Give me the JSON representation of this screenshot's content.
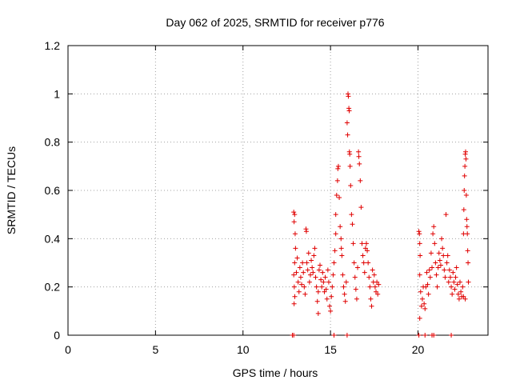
{
  "chart_data": {
    "type": "scatter",
    "title": "Day 062 of 2025, SRMTID for receiver p776",
    "xlabel": "GPS time / hours",
    "ylabel": "SRMTID / TECUs",
    "xlim": [
      0,
      24
    ],
    "ylim": [
      0,
      1.2
    ],
    "xticks": [
      0,
      5,
      10,
      15,
      20
    ],
    "xtick_labels": [
      "0",
      "5",
      "10",
      "15",
      "20"
    ],
    "yticks": [
      0,
      0.2,
      0.4,
      0.6,
      0.8,
      1.0,
      1.2
    ],
    "ytick_labels": [
      "0",
      "0.2",
      "0.4",
      "0.6",
      "0.8",
      "1",
      "1.2"
    ],
    "grid": true,
    "marker": "+",
    "color": "#e00000",
    "series": [
      {
        "name": "SRMTID",
        "points": [
          [
            12.82,
            0.0
          ],
          [
            12.9,
            0.0
          ],
          [
            15.2,
            0.0
          ],
          [
            15.95,
            0.0
          ],
          [
            20.05,
            0.0
          ],
          [
            20.4,
            0.0
          ],
          [
            20.8,
            0.0
          ],
          [
            20.9,
            0.0
          ],
          [
            21.9,
            0.0
          ],
          [
            12.9,
            0.51
          ],
          [
            12.95,
            0.5
          ],
          [
            12.92,
            0.47
          ],
          [
            12.98,
            0.42
          ],
          [
            13.0,
            0.36
          ],
          [
            12.95,
            0.3
          ],
          [
            12.9,
            0.25
          ],
          [
            12.93,
            0.2
          ],
          [
            12.96,
            0.16
          ],
          [
            12.92,
            0.13
          ],
          [
            13.05,
            0.26
          ],
          [
            13.1,
            0.32
          ],
          [
            13.15,
            0.22
          ],
          [
            13.2,
            0.18
          ],
          [
            13.25,
            0.28
          ],
          [
            13.3,
            0.24
          ],
          [
            13.35,
            0.21
          ],
          [
            13.4,
            0.3
          ],
          [
            13.45,
            0.26
          ],
          [
            13.5,
            0.2
          ],
          [
            13.55,
            0.17
          ],
          [
            13.6,
            0.44
          ],
          [
            13.62,
            0.43
          ],
          [
            13.65,
            0.3
          ],
          [
            13.7,
            0.27
          ],
          [
            13.75,
            0.34
          ],
          [
            13.8,
            0.22
          ],
          [
            13.85,
            0.25
          ],
          [
            13.9,
            0.31
          ],
          [
            13.95,
            0.28
          ],
          [
            14.0,
            0.26
          ],
          [
            14.05,
            0.33
          ],
          [
            14.1,
            0.36
          ],
          [
            14.15,
            0.24
          ],
          [
            14.2,
            0.2
          ],
          [
            14.25,
            0.14
          ],
          [
            14.3,
            0.09
          ],
          [
            14.3,
            0.18
          ],
          [
            14.35,
            0.27
          ],
          [
            14.4,
            0.29
          ],
          [
            14.45,
            0.23
          ],
          [
            14.5,
            0.2
          ],
          [
            14.55,
            0.26
          ],
          [
            14.6,
            0.22
          ],
          [
            14.65,
            0.18
          ],
          [
            14.7,
            0.24
          ],
          [
            14.75,
            0.19
          ],
          [
            14.8,
            0.15
          ],
          [
            14.85,
            0.27
          ],
          [
            14.9,
            0.22
          ],
          [
            14.95,
            0.12
          ],
          [
            15.0,
            0.1
          ],
          [
            15.05,
            0.16
          ],
          [
            15.1,
            0.2
          ],
          [
            15.15,
            0.25
          ],
          [
            15.2,
            0.3
          ],
          [
            15.25,
            0.35
          ],
          [
            15.3,
            0.42
          ],
          [
            15.3,
            0.5
          ],
          [
            15.35,
            0.58
          ],
          [
            15.4,
            0.64
          ],
          [
            15.42,
            0.69
          ],
          [
            15.45,
            0.7
          ],
          [
            15.5,
            0.57
          ],
          [
            15.55,
            0.45
          ],
          [
            15.6,
            0.4
          ],
          [
            15.62,
            0.36
          ],
          [
            15.65,
            0.33
          ],
          [
            15.7,
            0.25
          ],
          [
            15.75,
            0.2
          ],
          [
            15.8,
            0.17
          ],
          [
            15.85,
            0.14
          ],
          [
            15.9,
            0.22
          ],
          [
            15.95,
            0.88
          ],
          [
            15.98,
            0.83
          ],
          [
            16.0,
            1.0
          ],
          [
            16.02,
            0.99
          ],
          [
            16.05,
            0.94
          ],
          [
            16.07,
            0.93
          ],
          [
            16.08,
            0.76
          ],
          [
            16.1,
            0.75
          ],
          [
            16.12,
            0.7
          ],
          [
            16.15,
            0.62
          ],
          [
            16.2,
            0.5
          ],
          [
            16.25,
            0.46
          ],
          [
            16.3,
            0.38
          ],
          [
            16.35,
            0.3
          ],
          [
            16.4,
            0.24
          ],
          [
            16.45,
            0.19
          ],
          [
            16.5,
            0.15
          ],
          [
            16.55,
            0.28
          ],
          [
            16.6,
            0.76
          ],
          [
            16.62,
            0.74
          ],
          [
            16.65,
            0.71
          ],
          [
            16.7,
            0.64
          ],
          [
            16.75,
            0.53
          ],
          [
            16.8,
            0.38
          ],
          [
            16.85,
            0.33
          ],
          [
            16.9,
            0.3
          ],
          [
            16.95,
            0.26
          ],
          [
            17.0,
            0.36
          ],
          [
            17.05,
            0.38
          ],
          [
            17.1,
            0.35
          ],
          [
            17.15,
            0.3
          ],
          [
            17.2,
            0.24
          ],
          [
            17.25,
            0.2
          ],
          [
            17.3,
            0.15
          ],
          [
            17.35,
            0.12
          ],
          [
            17.4,
            0.27
          ],
          [
            17.45,
            0.22
          ],
          [
            17.5,
            0.25
          ],
          [
            17.55,
            0.2
          ],
          [
            17.6,
            0.18
          ],
          [
            17.65,
            0.22
          ],
          [
            17.7,
            0.17
          ],
          [
            17.75,
            0.21
          ],
          [
            20.05,
            0.43
          ],
          [
            20.08,
            0.42
          ],
          [
            20.1,
            0.38
          ],
          [
            20.12,
            0.33
          ],
          [
            20.1,
            0.25
          ],
          [
            20.15,
            0.18
          ],
          [
            20.2,
            0.12
          ],
          [
            20.1,
            0.07
          ],
          [
            20.25,
            0.15
          ],
          [
            20.3,
            0.2
          ],
          [
            20.35,
            0.13
          ],
          [
            20.4,
            0.11
          ],
          [
            20.45,
            0.2
          ],
          [
            20.5,
            0.26
          ],
          [
            20.55,
            0.21
          ],
          [
            20.6,
            0.17
          ],
          [
            20.65,
            0.27
          ],
          [
            20.7,
            0.24
          ],
          [
            20.75,
            0.34
          ],
          [
            20.8,
            0.28
          ],
          [
            20.85,
            0.42
          ],
          [
            20.9,
            0.45
          ],
          [
            20.95,
            0.38
          ],
          [
            21.0,
            0.3
          ],
          [
            21.05,
            0.25
          ],
          [
            21.1,
            0.2
          ],
          [
            21.15,
            0.28
          ],
          [
            21.2,
            0.34
          ],
          [
            21.25,
            0.31
          ],
          [
            21.3,
            0.29
          ],
          [
            21.35,
            0.4
          ],
          [
            21.4,
            0.36
          ],
          [
            21.45,
            0.33
          ],
          [
            21.5,
            0.27
          ],
          [
            21.55,
            0.24
          ],
          [
            21.6,
            0.5
          ],
          [
            21.65,
            0.3
          ],
          [
            21.7,
            0.33
          ],
          [
            21.75,
            0.22
          ],
          [
            21.8,
            0.27
          ],
          [
            21.85,
            0.24
          ],
          [
            21.9,
            0.2
          ],
          [
            21.95,
            0.17
          ],
          [
            22.0,
            0.26
          ],
          [
            22.05,
            0.22
          ],
          [
            22.1,
            0.19
          ],
          [
            22.15,
            0.24
          ],
          [
            22.2,
            0.28
          ],
          [
            22.25,
            0.21
          ],
          [
            22.3,
            0.17
          ],
          [
            22.35,
            0.15
          ],
          [
            22.4,
            0.22
          ],
          [
            22.45,
            0.18
          ],
          [
            22.5,
            0.16
          ],
          [
            22.55,
            0.2
          ],
          [
            22.6,
            0.42
          ],
          [
            22.62,
            0.52
          ],
          [
            22.64,
            0.6
          ],
          [
            22.66,
            0.66
          ],
          [
            22.68,
            0.7
          ],
          [
            22.7,
            0.75
          ],
          [
            22.72,
            0.76
          ],
          [
            22.74,
            0.73
          ],
          [
            22.76,
            0.58
          ],
          [
            22.78,
            0.48
          ],
          [
            22.8,
            0.45
          ],
          [
            22.82,
            0.42
          ],
          [
            22.84,
            0.35
          ],
          [
            22.86,
            0.3
          ],
          [
            22.88,
            0.22
          ],
          [
            22.7,
            0.15
          ],
          [
            22.6,
            0.16
          ]
        ]
      }
    ]
  }
}
